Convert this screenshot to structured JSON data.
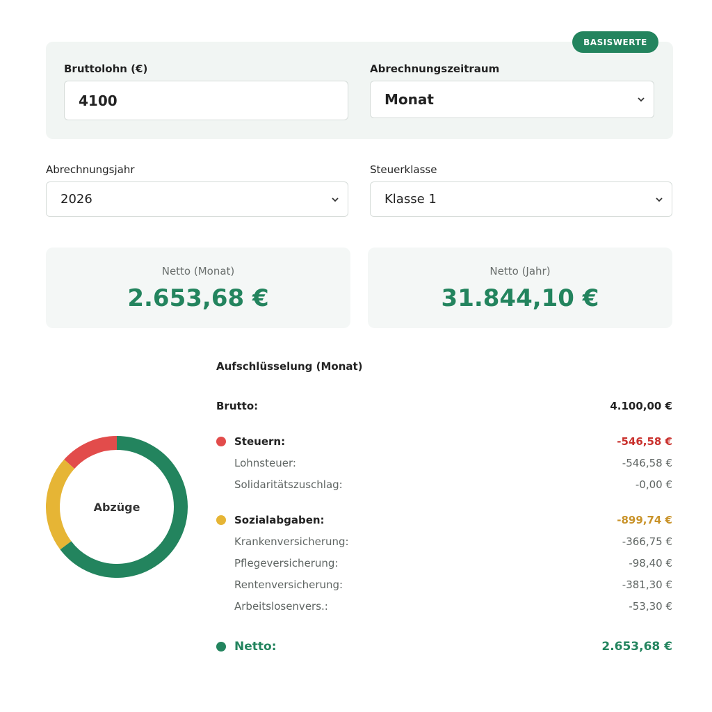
{
  "badge": "BASISWERTE",
  "gross": {
    "label": "Bruttolohn (€)",
    "value": "4100"
  },
  "period": {
    "label": "Abrechnungszeitraum",
    "selected": "Monat"
  },
  "year": {
    "label": "Abrechnungsjahr",
    "selected": "2026"
  },
  "tax_class": {
    "label": "Steuerklasse",
    "selected": "Klasse 1"
  },
  "net_month": {
    "caption": "Netto (Monat)",
    "value": "2.653,68 €"
  },
  "net_year": {
    "caption": "Netto (Jahr)",
    "value": "31.844,10 €"
  },
  "donut": {
    "center_label": "Abzüge",
    "segments": [
      {
        "key": "steuern",
        "amount": 546.58,
        "color": "#e24c4b"
      },
      {
        "key": "sozial",
        "amount": 899.74,
        "color": "#e6b535"
      },
      {
        "key": "netto",
        "amount": 2653.68,
        "color": "#23845e"
      }
    ]
  },
  "breakdown": {
    "title": "Aufschlüsselung (Monat)",
    "brutto": {
      "label": "Brutto:",
      "value": "4.100,00 €"
    },
    "steuern": {
      "label": "Steuern:",
      "value": "-546,58 €",
      "color": "#e24c4b",
      "value_color": "#c9302c",
      "items": [
        {
          "label": "Lohnsteuer:",
          "value": "-546,58 €"
        },
        {
          "label": "Solidaritätszuschlag:",
          "value": "-0,00 €"
        }
      ]
    },
    "sozial": {
      "label": "Sozialabgaben:",
      "value": "-899,74 €",
      "color": "#e6b535",
      "value_color": "#c9932a",
      "items": [
        {
          "label": "Krankenversicherung:",
          "value": "-366,75 €"
        },
        {
          "label": "Pflegeversicherung:",
          "value": "-98,40 €"
        },
        {
          "label": "Rentenversicherung:",
          "value": "-381,30 €"
        },
        {
          "label": "Arbeitslosenvers.:",
          "value": "-53,30 €"
        }
      ]
    },
    "netto": {
      "label": "Netto:",
      "value": "2.653,68 €",
      "color": "#23845e"
    }
  }
}
